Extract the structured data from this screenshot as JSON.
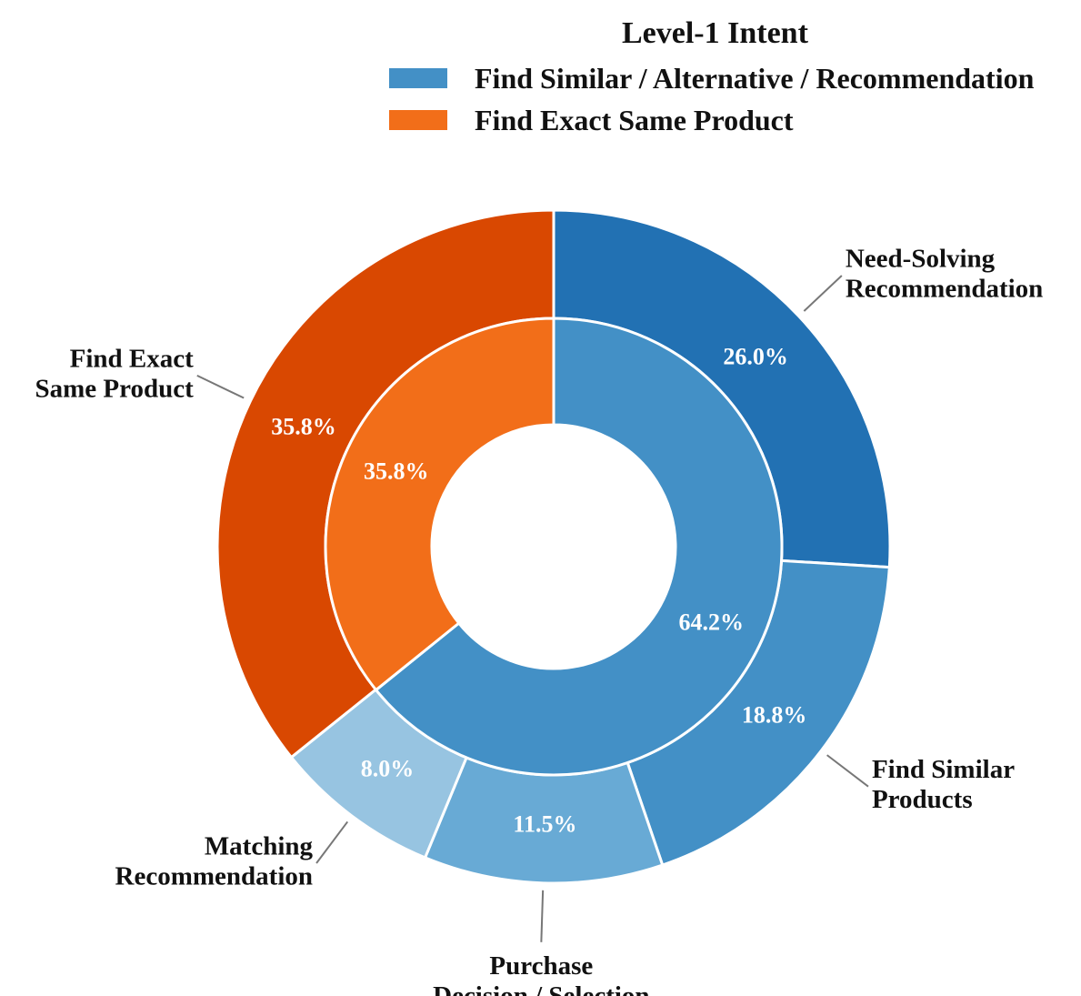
{
  "chart_data": {
    "type": "pie",
    "subtype": "nested-donut",
    "legend": {
      "title": "Level-1 Intent",
      "placement": "top-right",
      "entries": [
        {
          "label": "Find Similar / Alternative / Recommendation",
          "color": "#4390c6"
        },
        {
          "label": "Find Exact Same Product",
          "color": "#f26e19"
        }
      ]
    },
    "inner_ring": [
      {
        "label": "Find Similar / Alternative / Recommendation",
        "value": 64.2,
        "value_label": "64.2%",
        "color": "#4390c6"
      },
      {
        "label": "Find Exact Same Product",
        "value": 35.8,
        "value_label": "35.8%",
        "color": "#f26e19"
      }
    ],
    "outer_ring": [
      {
        "label": "Need-Solving Recommendation",
        "label_lines": [
          "Need-Solving",
          "Recommendation"
        ],
        "value": 26.0,
        "value_label": "26.0%",
        "color": "#2271b3",
        "parent": "Find Similar / Alternative / Recommendation"
      },
      {
        "label": "Find Similar Products",
        "label_lines": [
          "Find Similar",
          "Products"
        ],
        "value": 18.8,
        "value_label": "18.8%",
        "color": "#4390c6",
        "parent": "Find Similar / Alternative / Recommendation"
      },
      {
        "label": "Purchase Decision / Selection",
        "label_lines": [
          "Purchase",
          "Decision / Selection"
        ],
        "value": 11.5,
        "value_label": "11.5%",
        "color": "#68aad5",
        "parent": "Find Similar / Alternative / Recommendation"
      },
      {
        "label": "Matching Recommendation",
        "label_lines": [
          "Matching",
          "Recommendation"
        ],
        "value": 8.0,
        "value_label": "8.0%",
        "color": "#97c4e1",
        "parent": "Find Similar / Alternative / Recommendation"
      },
      {
        "label": "Find Exact Same Product",
        "label_lines": [
          "Find Exact",
          "Same Product"
        ],
        "value": 35.8,
        "value_label": "35.8%",
        "color": "#d94801",
        "parent": "Find Exact Same Product"
      }
    ]
  }
}
